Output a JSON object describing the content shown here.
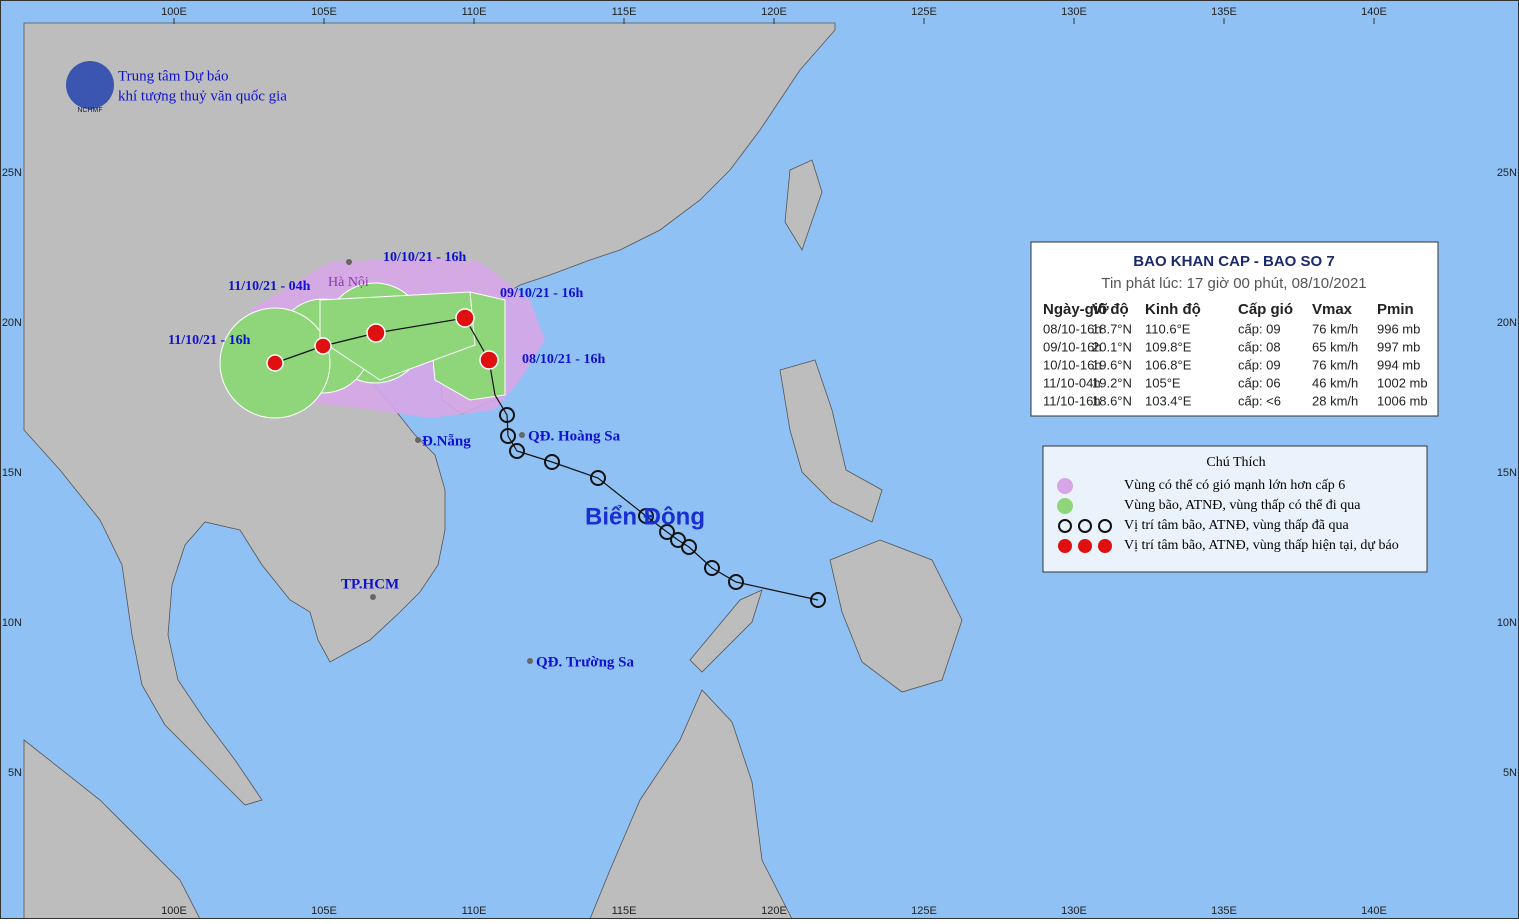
{
  "header": {
    "org_line1": "Trung tâm Dự báo",
    "org_line2": "khí tượng thuỷ văn quốc gia",
    "logo": "NCHMF"
  },
  "graticule": {
    "longitudes": [
      "100E",
      "105E",
      "110E",
      "115E",
      "120E",
      "125E",
      "130E",
      "135E",
      "140E"
    ],
    "latitudes": [
      "25N",
      "20N",
      "15N",
      "10N",
      "5N"
    ]
  },
  "places": {
    "hanoi": "Hà Nội",
    "danang": "Đ.Nẵng",
    "hcm": "TP.HCM",
    "hoangsa": "QĐ. Hoàng Sa",
    "truongsa": "QĐ. Trường Sa",
    "sea": "Biển Đông"
  },
  "track_labels": [
    "08/10/21 - 16h",
    "09/10/21 - 16h",
    "10/10/21 - 16h",
    "11/10/21 - 04h",
    "11/10/21 - 16h"
  ],
  "info": {
    "title": "BAO KHAN CAP - BAO SO 7",
    "subtitle": "Tin phát lúc: 17 giờ 00 phút, 08/10/2021",
    "table": {
      "columns": [
        "Ngày-giờ",
        "Vĩ độ",
        "Kinh độ",
        "Cấp gió",
        "Vmax",
        "Pmin"
      ],
      "rows": [
        [
          "08/10-16h",
          "18.7°N",
          "110.6°E",
          "cấp: 09",
          "76 km/h",
          "996 mb"
        ],
        [
          "09/10-16h",
          "20.1°N",
          "109.8°E",
          "cấp: 08",
          "65 km/h",
          "997 mb"
        ],
        [
          "10/10-16h",
          "19.6°N",
          "106.8°E",
          "cấp: 09",
          "76 km/h",
          "994 mb"
        ],
        [
          "11/10-04h",
          "19.2°N",
          "105°E",
          "cấp: 06",
          "46 km/h",
          "1002 mb"
        ],
        [
          "11/10-16h",
          "18.6°N",
          "103.4°E",
          "cấp: <6",
          "28 km/h",
          "1006 mb"
        ]
      ]
    }
  },
  "legend": {
    "title": "Chú Thích",
    "items": [
      "Vùng có thể có gió mạnh lớn hơn cấp 6",
      "Vùng bão, ATNĐ, vùng thấp có thể đi qua",
      "Vị trí tâm bão, ATNĐ, vùng thấp đã qua",
      "Vị trí tâm bão, ATNĐ, vùng thấp hiện tại, dự báo"
    ]
  }
}
